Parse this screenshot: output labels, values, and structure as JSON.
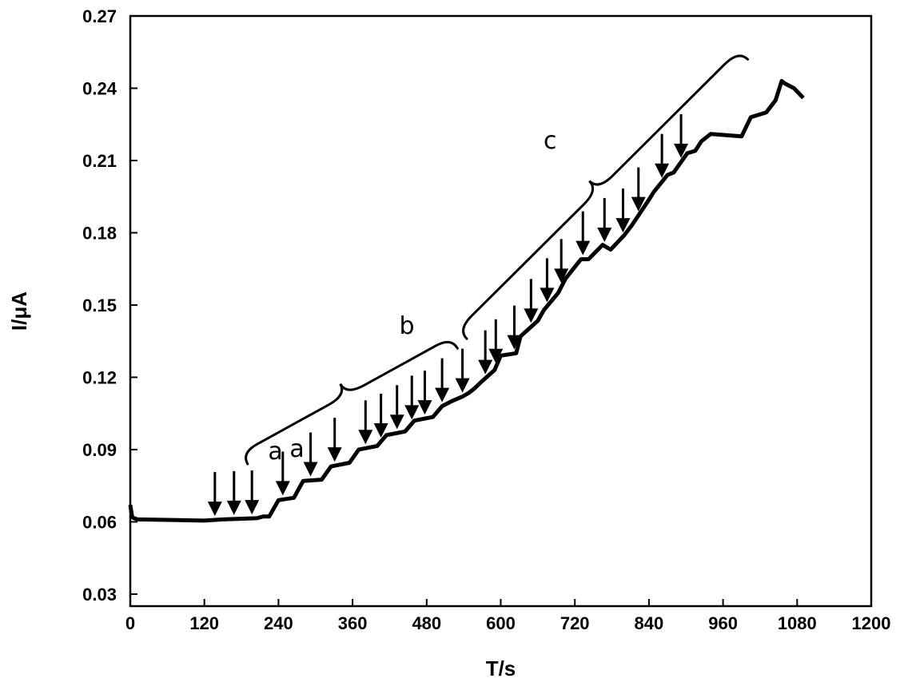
{
  "chart_data": {
    "type": "line",
    "xlabel": "T/s",
    "ylabel": "I/μA",
    "xlim": [
      0,
      1200
    ],
    "ylim": [
      0.025,
      0.27
    ],
    "xticks": [
      0,
      120,
      240,
      360,
      480,
      600,
      720,
      840,
      960,
      1080,
      1200
    ],
    "xtick_labels": [
      "0",
      "120",
      "240",
      "360",
      "480",
      "600",
      "720",
      "840",
      "960",
      "1080",
      "1200"
    ],
    "yticks": [
      0.03,
      0.06,
      0.09,
      0.12,
      0.15,
      0.18,
      0.21,
      0.24,
      0.27
    ],
    "ytick_labels": [
      "0.03",
      "0.06",
      "0.09",
      "0.12",
      "0.15",
      "0.18",
      "0.21",
      "0.24",
      "0.27"
    ],
    "grid": false,
    "series": [
      {
        "x": [
          0,
          3,
          6,
          12,
          60,
          120,
          150,
          205,
          215,
          225,
          240,
          265,
          280,
          310,
          325,
          355,
          370,
          400,
          415,
          445,
          460,
          490,
          505,
          520,
          538,
          548,
          558,
          568,
          590,
          600,
          625,
          632,
          660,
          670,
          693,
          705,
          730,
          742,
          765,
          778,
          800,
          812,
          838,
          848,
          870,
          880,
          902,
          915,
          925,
          940,
          990,
          1005,
          1030,
          1045,
          1055,
          1060,
          1075,
          1090
        ],
        "y": [
          0.067,
          0.062,
          0.0615,
          0.061,
          0.0608,
          0.0605,
          0.061,
          0.0615,
          0.0622,
          0.0622,
          0.069,
          0.07,
          0.077,
          0.0775,
          0.083,
          0.0845,
          0.09,
          0.0915,
          0.096,
          0.0975,
          0.102,
          0.1035,
          0.108,
          0.11,
          0.112,
          0.1135,
          0.1155,
          0.118,
          0.123,
          0.129,
          0.13,
          0.137,
          0.1435,
          0.148,
          0.155,
          0.161,
          0.169,
          0.169,
          0.175,
          0.173,
          0.179,
          0.183,
          0.193,
          0.197,
          0.204,
          0.205,
          0.213,
          0.214,
          0.218,
          0.221,
          0.22,
          0.228,
          0.23,
          0.235,
          0.243,
          0.242,
          0.24,
          0.236
        ]
      }
    ],
    "arrows_x": [
      137,
      168,
      197,
      247,
      292,
      331,
      381,
      406,
      432,
      456,
      477,
      505,
      538,
      575,
      592,
      622,
      649,
      675,
      698,
      733,
      768,
      798,
      823,
      861,
      892
    ],
    "arrow_x_offset": 145,
    "annotations": [
      {
        "text": "a",
        "x": 235,
        "y": 0.086
      },
      {
        "text": "a",
        "x": 270,
        "y": 0.087
      },
      {
        "text": "b",
        "x": 448,
        "y": 0.138
      },
      {
        "text": "c",
        "x": 680,
        "y": 0.215
      }
    ],
    "braces": [
      {
        "x1": 190,
        "y1": 0.084,
        "x2": 530,
        "y2": 0.132,
        "label": "b"
      },
      {
        "x1": 545,
        "y1": 0.136,
        "x2": 1000,
        "y2": 0.252,
        "label": "c"
      }
    ]
  }
}
